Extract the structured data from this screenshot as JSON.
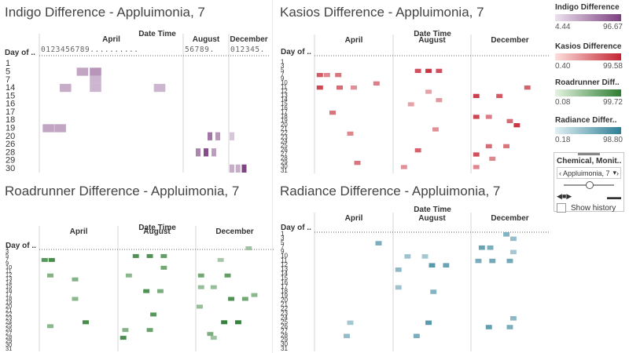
{
  "panels_text": {
    "date_time_label": "Date Time",
    "day_of_label": "Day of .."
  },
  "chart_data": [
    {
      "type": "heatmap",
      "title": "Indigo Difference - Appluimonia, 7",
      "x_header": "Date Time",
      "months": [
        "April",
        "August",
        "December"
      ],
      "x_tick_text": {
        "April": "0123456789..........",
        "August": "56789.",
        "December": "012345."
      },
      "y_header": "Day of ..",
      "rows": [
        "1",
        "5",
        "7",
        "14",
        "15",
        "16",
        "17",
        "18",
        "19",
        "20",
        "26",
        "28",
        "29",
        "30"
      ],
      "color": "#7b3f7f",
      "cells": [
        {
          "row": "5",
          "month": "April",
          "pos": 0.28,
          "value": 35
        },
        {
          "row": "5",
          "month": "April",
          "pos": 0.38,
          "value": 45
        },
        {
          "row": "7",
          "month": "April",
          "pos": 0.38,
          "value": 25
        },
        {
          "row": "14",
          "month": "April",
          "pos": 0.15,
          "value": 30
        },
        {
          "row": "14",
          "month": "April",
          "pos": 0.38,
          "value": 25
        },
        {
          "row": "14",
          "month": "April",
          "pos": 0.87,
          "value": 25
        },
        {
          "row": "19",
          "month": "April",
          "pos": 0.02,
          "value": 35
        },
        {
          "row": "19",
          "month": "April",
          "pos": 0.11,
          "value": 35
        },
        {
          "row": "20",
          "month": "August",
          "pos": 0.6,
          "value": 65
        },
        {
          "row": "20",
          "month": "August",
          "pos": 0.8,
          "value": 45
        },
        {
          "row": "20",
          "month": "December",
          "pos": 0.0,
          "value": 15
        },
        {
          "row": "28",
          "month": "August",
          "pos": 0.3,
          "value": 55
        },
        {
          "row": "28",
          "month": "August",
          "pos": 0.5,
          "value": 90
        },
        {
          "row": "28",
          "month": "August",
          "pos": 0.7,
          "value": 40
        },
        {
          "row": "30",
          "month": "December",
          "pos": 0.0,
          "value": 30
        },
        {
          "row": "30",
          "month": "December",
          "pos": 0.18,
          "value": 30
        },
        {
          "row": "30",
          "month": "December",
          "pos": 0.36,
          "value": 96
        }
      ]
    },
    {
      "type": "heatmap",
      "title": "Kasios Difference - Appluimonia, 7",
      "x_header": "Date Time",
      "months": [
        "April",
        "August",
        "December"
      ],
      "y_header": "Day of ..",
      "rows": [
        "1",
        "3",
        "5",
        "7",
        "9",
        "10",
        "11",
        "12",
        "13",
        "14",
        "15",
        "16",
        "17",
        "18",
        "19",
        "20",
        "21",
        "22",
        "23",
        "24",
        "25",
        "26",
        "27",
        "28",
        "29",
        "30",
        "31"
      ],
      "color": "#c42433",
      "cells": [
        {
          "row": "7",
          "month": "April",
          "pos": 0.02,
          "value": 70
        },
        {
          "row": "7",
          "month": "April",
          "pos": 0.12,
          "value": 45
        },
        {
          "row": "7",
          "month": "April",
          "pos": 0.28,
          "value": 55
        },
        {
          "row": "5",
          "month": "August",
          "pos": 0.3,
          "value": 75
        },
        {
          "row": "5",
          "month": "August",
          "pos": 0.45,
          "value": 90
        },
        {
          "row": "5",
          "month": "August",
          "pos": 0.6,
          "value": 75
        },
        {
          "row": "10",
          "month": "April",
          "pos": 0.82,
          "value": 50
        },
        {
          "row": "11",
          "month": "April",
          "pos": 0.02,
          "value": 80
        },
        {
          "row": "11",
          "month": "April",
          "pos": 0.3,
          "value": 60
        },
        {
          "row": "11",
          "month": "April",
          "pos": 0.5,
          "value": 40
        },
        {
          "row": "11",
          "month": "December",
          "pos": 0.75,
          "value": 65
        },
        {
          "row": "12",
          "month": "August",
          "pos": 0.45,
          "value": 30
        },
        {
          "row": "13",
          "month": "December",
          "pos": 0.02,
          "value": 85
        },
        {
          "row": "13",
          "month": "December",
          "pos": 0.35,
          "value": 70
        },
        {
          "row": "14",
          "month": "August",
          "pos": 0.6,
          "value": 35
        },
        {
          "row": "15",
          "month": "August",
          "pos": 0.2,
          "value": 30
        },
        {
          "row": "17",
          "month": "April",
          "pos": 0.2,
          "value": 55
        },
        {
          "row": "18",
          "month": "December",
          "pos": 0.02,
          "value": 80
        },
        {
          "row": "18",
          "month": "December",
          "pos": 0.2,
          "value": 50
        },
        {
          "row": "19",
          "month": "December",
          "pos": 0.5,
          "value": 60
        },
        {
          "row": "20",
          "month": "December",
          "pos": 0.6,
          "value": 90
        },
        {
          "row": "21",
          "month": "August",
          "pos": 0.55,
          "value": 40
        },
        {
          "row": "22",
          "month": "April",
          "pos": 0.45,
          "value": 45
        },
        {
          "row": "25",
          "month": "December",
          "pos": 0.2,
          "value": 60
        },
        {
          "row": "25",
          "month": "December",
          "pos": 0.45,
          "value": 55
        },
        {
          "row": "26",
          "month": "August",
          "pos": 0.3,
          "value": 65
        },
        {
          "row": "27",
          "month": "December",
          "pos": 0.02,
          "value": 75
        },
        {
          "row": "28",
          "month": "December",
          "pos": 0.25,
          "value": 45
        },
        {
          "row": "29",
          "month": "April",
          "pos": 0.55,
          "value": 55
        },
        {
          "row": "30",
          "month": "August",
          "pos": 0.1,
          "value": 40
        },
        {
          "row": "30",
          "month": "December",
          "pos": 0.02,
          "value": 45
        }
      ]
    },
    {
      "type": "heatmap",
      "title": "Roadrunner Difference - Appluimonia, 7",
      "x_header": "Date Time",
      "months": [
        "April",
        "August",
        "December"
      ],
      "y_header": "Day of ..",
      "rows": [
        "1",
        "3",
        "5",
        "7",
        "9",
        "10",
        "11",
        "12",
        "13",
        "14",
        "15",
        "16",
        "17",
        "18",
        "19",
        "20",
        "21",
        "22",
        "23",
        "24",
        "25",
        "26",
        "27",
        "28",
        "29",
        "30",
        "31"
      ],
      "color": "#2e7d32",
      "cells": [
        {
          "row": "1",
          "month": "December",
          "pos": 0.7,
          "value": 35
        },
        {
          "row": "5",
          "month": "August",
          "pos": 0.2,
          "value": 80
        },
        {
          "row": "5",
          "month": "August",
          "pos": 0.4,
          "value": 80
        },
        {
          "row": "5",
          "month": "August",
          "pos": 0.6,
          "value": 70
        },
        {
          "row": "7",
          "month": "April",
          "pos": 0.02,
          "value": 75
        },
        {
          "row": "7",
          "month": "April",
          "pos": 0.12,
          "value": 85
        },
        {
          "row": "7",
          "month": "December",
          "pos": 0.3,
          "value": 30
        },
        {
          "row": "10",
          "month": "August",
          "pos": 0.6,
          "value": 60
        },
        {
          "row": "12",
          "month": "April",
          "pos": 0.1,
          "value": 50
        },
        {
          "row": "12",
          "month": "August",
          "pos": 0.1,
          "value": 45
        },
        {
          "row": "12",
          "month": "December",
          "pos": 0.02,
          "value": 60
        },
        {
          "row": "12",
          "month": "December",
          "pos": 0.4,
          "value": 70
        },
        {
          "row": "13",
          "month": "April",
          "pos": 0.45,
          "value": 50
        },
        {
          "row": "15",
          "month": "December",
          "pos": 0.02,
          "value": 40
        },
        {
          "row": "15",
          "month": "December",
          "pos": 0.2,
          "value": 40
        },
        {
          "row": "16",
          "month": "August",
          "pos": 0.35,
          "value": 80
        },
        {
          "row": "16",
          "month": "August",
          "pos": 0.55,
          "value": 55
        },
        {
          "row": "17",
          "month": "December",
          "pos": 0.78,
          "value": 45
        },
        {
          "row": "18",
          "month": "April",
          "pos": 0.45,
          "value": 45
        },
        {
          "row": "18",
          "month": "December",
          "pos": 0.45,
          "value": 80
        },
        {
          "row": "18",
          "month": "December",
          "pos": 0.65,
          "value": 60
        },
        {
          "row": "20",
          "month": "December",
          "pos": 0.0,
          "value": 40
        },
        {
          "row": "22",
          "month": "August",
          "pos": 0.45,
          "value": 75
        },
        {
          "row": "24",
          "month": "April",
          "pos": 0.6,
          "value": 85
        },
        {
          "row": "24",
          "month": "December",
          "pos": 0.35,
          "value": 95
        },
        {
          "row": "24",
          "month": "December",
          "pos": 0.55,
          "value": 95
        },
        {
          "row": "25",
          "month": "April",
          "pos": 0.1,
          "value": 45
        },
        {
          "row": "26",
          "month": "August",
          "pos": 0.05,
          "value": 50
        },
        {
          "row": "26",
          "month": "August",
          "pos": 0.4,
          "value": 65
        },
        {
          "row": "27",
          "month": "December",
          "pos": 0.15,
          "value": 55
        },
        {
          "row": "28",
          "month": "August",
          "pos": 0.02,
          "value": 85
        },
        {
          "row": "28",
          "month": "December",
          "pos": 0.2,
          "value": 35
        }
      ]
    },
    {
      "type": "heatmap",
      "title": "Radiance Difference - Appluimonia, 7",
      "x_header": "Date Time",
      "months": [
        "April",
        "August",
        "December"
      ],
      "y_header": "Day of ..",
      "rows": [
        "1",
        "3",
        "5",
        "7",
        "9",
        "10",
        "11",
        "12",
        "13",
        "14",
        "15",
        "16",
        "17",
        "18",
        "19",
        "20",
        "21",
        "22",
        "23",
        "24",
        "25",
        "26",
        "27",
        "28",
        "29",
        "30",
        "31"
      ],
      "color": "#2e7f96",
      "cells": [
        {
          "row": "1",
          "month": "December",
          "pos": 0.45,
          "value": 50
        },
        {
          "row": "3",
          "month": "December",
          "pos": 0.55,
          "value": 40
        },
        {
          "row": "5",
          "month": "April",
          "pos": 0.85,
          "value": 55
        },
        {
          "row": "7",
          "month": "December",
          "pos": 0.1,
          "value": 65
        },
        {
          "row": "7",
          "month": "December",
          "pos": 0.22,
          "value": 55
        },
        {
          "row": "9",
          "month": "December",
          "pos": 0.55,
          "value": 30
        },
        {
          "row": "10",
          "month": "August",
          "pos": 0.15,
          "value": 35
        },
        {
          "row": "10",
          "month": "August",
          "pos": 0.4,
          "value": 30
        },
        {
          "row": "11",
          "month": "December",
          "pos": 0.05,
          "value": 55
        },
        {
          "row": "11",
          "month": "December",
          "pos": 0.25,
          "value": 60
        },
        {
          "row": "11",
          "month": "December",
          "pos": 0.5,
          "value": 60
        },
        {
          "row": "12",
          "month": "August",
          "pos": 0.5,
          "value": 75
        },
        {
          "row": "12",
          "month": "August",
          "pos": 0.7,
          "value": 65
        },
        {
          "row": "13",
          "month": "August",
          "pos": 0.02,
          "value": 45
        },
        {
          "row": "17",
          "month": "August",
          "pos": 0.02,
          "value": 35
        },
        {
          "row": "18",
          "month": "August",
          "pos": 0.52,
          "value": 50
        },
        {
          "row": "24",
          "month": "December",
          "pos": 0.55,
          "value": 45
        },
        {
          "row": "25",
          "month": "April",
          "pos": 0.45,
          "value": 30
        },
        {
          "row": "25",
          "month": "August",
          "pos": 0.45,
          "value": 75
        },
        {
          "row": "26",
          "month": "December",
          "pos": 0.2,
          "value": 70
        },
        {
          "row": "26",
          "month": "December",
          "pos": 0.5,
          "value": 55
        },
        {
          "row": "28",
          "month": "April",
          "pos": 0.4,
          "value": 40
        },
        {
          "row": "28",
          "month": "August",
          "pos": 0.28,
          "value": 55
        }
      ]
    }
  ],
  "legends": [
    {
      "title": "Indigo Difference",
      "min": "4.44",
      "max": "96.67",
      "from": "#ece2ee",
      "to": "#7b3f7f"
    },
    {
      "title": "Kasios Difference",
      "min": "0.40",
      "max": "99.58",
      "from": "#fde0dc",
      "to": "#c42433"
    },
    {
      "title": "Roadrunner Diff..",
      "min": "0.08",
      "max": "99.72",
      "from": "#e4f3e1",
      "to": "#2e7d32"
    },
    {
      "title": "Radiance Differ..",
      "min": "0.18",
      "max": "98.80",
      "from": "#e1f0f3",
      "to": "#2e7f96"
    }
  ],
  "filter_control": {
    "title": "Chemical, Monit..",
    "selected": "Appluimonia, 7",
    "show_history": "Show history"
  }
}
